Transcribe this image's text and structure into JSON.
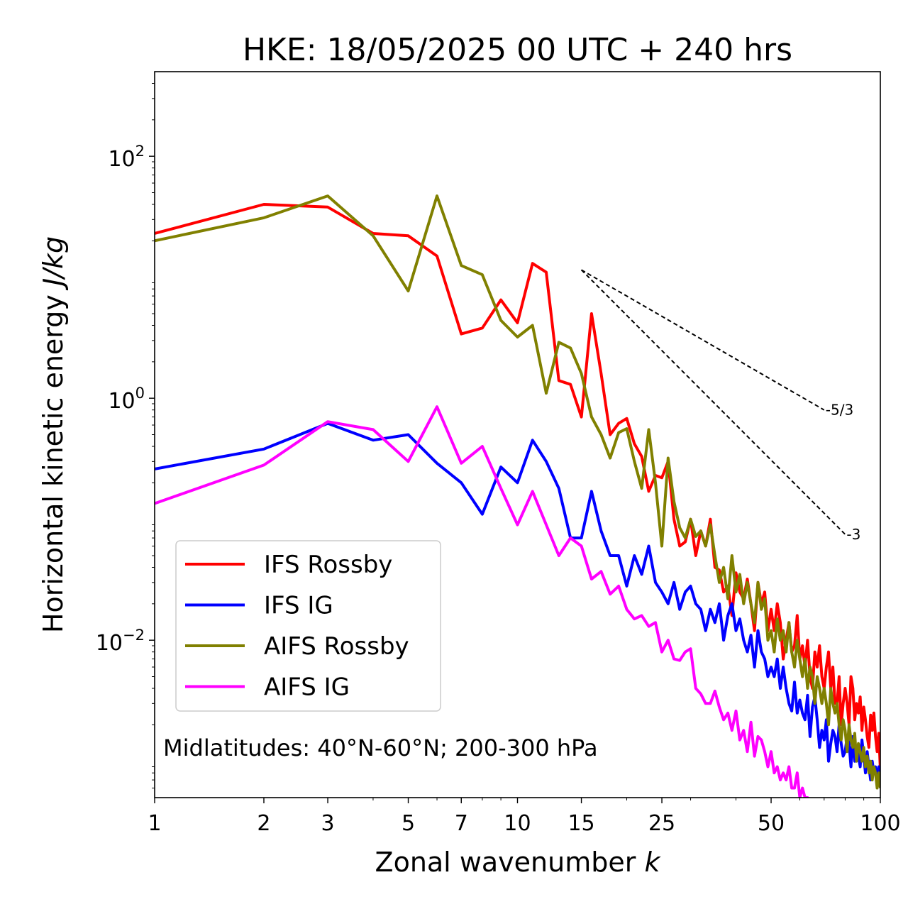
{
  "chart_data": {
    "type": "line",
    "title": "HKE: 18/05/2025 00 UTC + 240 hrs",
    "xlabel": "Zonal wavenumber",
    "xlabel_var": "k",
    "ylabel": "Horizontal kinetic energy",
    "ylabel_unit": "J/kg",
    "xscale": "log",
    "yscale": "log",
    "xlim": [
      1,
      100
    ],
    "ylim": [
      0.0005,
      500
    ],
    "x_ticks": [
      1,
      2,
      3,
      5,
      7,
      10,
      15,
      25,
      50,
      100
    ],
    "x_tick_labels": [
      "1",
      "2",
      "3",
      "5",
      "7",
      "10",
      "15",
      "25",
      "50",
      "100"
    ],
    "y_ticks": [
      0.01,
      1,
      100
    ],
    "y_tick_labels": [
      {
        "base": "10",
        "exp": "−2"
      },
      {
        "base": "10",
        "exp": "0"
      },
      {
        "base": "10",
        "exp": "2"
      }
    ],
    "legend_position": "lower-left",
    "annotation": "Midlatitudes: 40°N-60°N; 200-300 hPa",
    "reference_slopes": [
      {
        "label": "-5/3",
        "slope": -1.6667,
        "x_start": 15,
        "y_start": 11.5,
        "x_end": 70,
        "y_end": 0.8
      },
      {
        "label": "-3",
        "slope": -3,
        "x_start": 15,
        "y_start": 11.5,
        "x_end": 80,
        "y_end": 0.075
      }
    ],
    "series": [
      {
        "name": "IFS Rossby",
        "color": "#ff0000",
        "x": [
          1,
          2,
          3,
          4,
          5,
          6,
          7,
          8,
          9,
          10,
          11,
          12,
          13,
          14,
          15,
          16,
          17,
          18,
          19,
          20,
          21,
          22,
          23,
          24,
          25,
          26,
          27,
          28,
          29,
          30,
          31,
          32,
          33,
          34,
          35,
          36,
          37,
          38,
          39,
          40,
          41,
          42,
          43,
          44,
          45,
          46,
          47,
          48,
          49,
          50,
          51,
          52,
          53,
          54,
          55,
          56,
          57,
          58,
          59,
          60,
          61,
          62,
          63,
          64,
          65,
          66,
          67,
          68,
          69,
          70,
          71,
          72,
          73,
          74,
          75,
          76,
          77,
          78,
          79,
          80,
          81,
          82,
          83,
          84,
          85,
          86,
          87,
          88,
          89,
          90,
          91,
          92,
          93,
          94,
          95,
          96,
          97,
          98,
          99,
          100
        ],
        "y": [
          23,
          40,
          38,
          23,
          22,
          15,
          3.4,
          3.8,
          6.5,
          4.2,
          13,
          11,
          1.4,
          1.3,
          0.7,
          5,
          1.6,
          0.5,
          0.62,
          0.68,
          0.42,
          0.33,
          0.17,
          0.23,
          0.22,
          0.3,
          0.1,
          0.06,
          0.065,
          0.1,
          0.05,
          0.08,
          0.06,
          0.1,
          0.04,
          0.038,
          0.025,
          0.028,
          0.016,
          0.036,
          0.025,
          0.022,
          0.032,
          0.02,
          0.012,
          0.03,
          0.02,
          0.025,
          0.012,
          0.018,
          0.012,
          0.02,
          0.014,
          0.007,
          0.01,
          0.014,
          0.008,
          0.009,
          0.016,
          0.007,
          0.009,
          0.006,
          0.01,
          0.005,
          0.004,
          0.008,
          0.006,
          0.009,
          0.005,
          0.004,
          0.006,
          0.008,
          0.004,
          0.006,
          0.003,
          0.003,
          0.005,
          0.002,
          0.003,
          0.004,
          0.003,
          0.002,
          0.005,
          0.004,
          0.0022,
          0.003,
          0.0025,
          0.0034,
          0.0018,
          0.0028,
          0.0022,
          0.0016,
          0.0013,
          0.0024,
          0.0018,
          0.0025,
          0.0016,
          0.0012,
          0.0017,
          0.00085
        ]
      },
      {
        "name": "IFS IG",
        "color": "#0000ff",
        "x": [
          1,
          2,
          3,
          4,
          5,
          6,
          7,
          8,
          9,
          10,
          11,
          12,
          13,
          14,
          15,
          16,
          17,
          18,
          19,
          20,
          21,
          22,
          23,
          24,
          25,
          26,
          27,
          28,
          29,
          30,
          31,
          32,
          33,
          34,
          35,
          36,
          37,
          38,
          39,
          40,
          41,
          42,
          43,
          44,
          45,
          46,
          47,
          48,
          49,
          50,
          51,
          52,
          53,
          54,
          55,
          56,
          57,
          58,
          59,
          60,
          61,
          62,
          63,
          64,
          65,
          66,
          67,
          68,
          69,
          70,
          71,
          72,
          73,
          74,
          75,
          76,
          77,
          78,
          79,
          80,
          81,
          82,
          83,
          84,
          85,
          86,
          87,
          88,
          89,
          90,
          91,
          92,
          93,
          94,
          95,
          96,
          97,
          98,
          99,
          100
        ],
        "y": [
          0.26,
          0.38,
          0.62,
          0.45,
          0.5,
          0.29,
          0.2,
          0.11,
          0.27,
          0.2,
          0.45,
          0.3,
          0.18,
          0.07,
          0.07,
          0.17,
          0.08,
          0.05,
          0.05,
          0.028,
          0.05,
          0.035,
          0.06,
          0.03,
          0.025,
          0.02,
          0.03,
          0.018,
          0.025,
          0.028,
          0.02,
          0.018,
          0.012,
          0.018,
          0.014,
          0.02,
          0.01,
          0.016,
          0.02,
          0.012,
          0.015,
          0.01,
          0.008,
          0.011,
          0.006,
          0.012,
          0.008,
          0.007,
          0.005,
          0.006,
          0.005,
          0.007,
          0.004,
          0.006,
          0.004,
          0.003,
          0.0026,
          0.0045,
          0.0025,
          0.0032,
          0.0025,
          0.0022,
          0.0035,
          0.0016,
          0.0028,
          0.0034,
          0.0022,
          0.0013,
          0.0018,
          0.0015,
          0.0022,
          0.001,
          0.0014,
          0.0018,
          0.0016,
          0.0012,
          0.002,
          0.0014,
          0.0011,
          0.0012,
          0.0016,
          0.0014,
          0.0009,
          0.0016,
          0.001,
          0.0013,
          0.0011,
          0.0009,
          0.0015,
          0.0011,
          0.0008,
          0.0012,
          0.0009,
          0.0007,
          0.001,
          0.0008,
          0.0009,
          0.0007,
          0.0009,
          0.0006
        ]
      },
      {
        "name": "AIFS Rossby",
        "color": "#808000",
        "x": [
          1,
          2,
          3,
          4,
          5,
          6,
          7,
          8,
          9,
          10,
          11,
          12,
          13,
          14,
          15,
          16,
          17,
          18,
          19,
          20,
          21,
          22,
          23,
          24,
          25,
          26,
          27,
          28,
          29,
          30,
          31,
          32,
          33,
          34,
          35,
          36,
          37,
          38,
          39,
          40,
          41,
          42,
          43,
          44,
          45,
          46,
          47,
          48,
          49,
          50,
          51,
          52,
          53,
          54,
          55,
          56,
          57,
          58,
          59,
          60,
          61,
          62,
          63,
          64,
          65,
          66,
          67,
          68,
          69,
          70,
          71,
          72,
          73,
          74,
          75,
          76,
          77,
          78,
          79,
          80,
          81,
          82,
          83,
          84,
          85,
          86,
          87,
          88,
          89,
          90,
          91,
          92,
          93,
          94,
          95,
          96,
          97,
          98,
          99,
          100
        ],
        "y": [
          20,
          31,
          47,
          22,
          7.7,
          47,
          12.5,
          10.5,
          4.4,
          3.2,
          4,
          1.1,
          2.9,
          2.6,
          1.6,
          0.7,
          0.5,
          0.32,
          0.52,
          0.56,
          0.3,
          0.18,
          0.55,
          0.2,
          0.06,
          0.32,
          0.14,
          0.085,
          0.07,
          0.1,
          0.072,
          0.08,
          0.06,
          0.09,
          0.05,
          0.03,
          0.04,
          0.022,
          0.05,
          0.025,
          0.035,
          0.02,
          0.03,
          0.02,
          0.014,
          0.03,
          0.018,
          0.022,
          0.01,
          0.012,
          0.008,
          0.015,
          0.01,
          0.012,
          0.008,
          0.014,
          0.008,
          0.006,
          0.01,
          0.007,
          0.005,
          0.007,
          0.004,
          0.006,
          0.005,
          0.003,
          0.005,
          0.004,
          0.003,
          0.004,
          0.003,
          0.002,
          0.004,
          0.003,
          0.0025,
          0.003,
          0.002,
          0.0015,
          0.0022,
          0.0018,
          0.0012,
          0.002,
          0.0015,
          0.0013,
          0.0017,
          0.001,
          0.0014,
          0.0012,
          0.001,
          0.0013,
          0.0009,
          0.0011,
          0.0008,
          0.001,
          0.0007,
          0.0009,
          0.0008,
          0.0006,
          0.0008,
          0.0006
        ]
      },
      {
        "name": "AIFS IG",
        "color": "#ff00ff",
        "x": [
          1,
          2,
          3,
          4,
          5,
          6,
          7,
          8,
          9,
          10,
          11,
          12,
          13,
          14,
          15,
          16,
          17,
          18,
          19,
          20,
          21,
          22,
          23,
          24,
          25,
          26,
          27,
          28,
          29,
          30,
          31,
          32,
          33,
          34,
          35,
          36,
          37,
          38,
          39,
          40,
          41,
          42,
          43,
          44,
          45,
          46,
          47,
          48,
          49,
          50,
          51,
          52,
          53,
          54,
          55,
          56,
          57,
          58,
          59,
          60,
          61,
          62,
          63,
          64
        ],
        "y": [
          0.135,
          0.28,
          0.64,
          0.55,
          0.3,
          0.85,
          0.29,
          0.4,
          0.18,
          0.09,
          0.17,
          0.09,
          0.05,
          0.07,
          0.06,
          0.032,
          0.037,
          0.024,
          0.028,
          0.018,
          0.015,
          0.016,
          0.013,
          0.014,
          0.008,
          0.01,
          0.007,
          0.0068,
          0.008,
          0.0085,
          0.004,
          0.0036,
          0.003,
          0.003,
          0.0038,
          0.0028,
          0.0022,
          0.0025,
          0.0018,
          0.0026,
          0.0015,
          0.0018,
          0.0012,
          0.0021,
          0.0011,
          0.0016,
          0.0015,
          0.0012,
          0.0009,
          0.0012,
          0.0008,
          0.0009,
          0.0007,
          0.0008,
          0.0007,
          0.0009,
          0.0006,
          0.0006,
          0.0008,
          0.0005,
          0.0006,
          0.0005,
          0.0005,
          0.0004
        ]
      }
    ]
  }
}
